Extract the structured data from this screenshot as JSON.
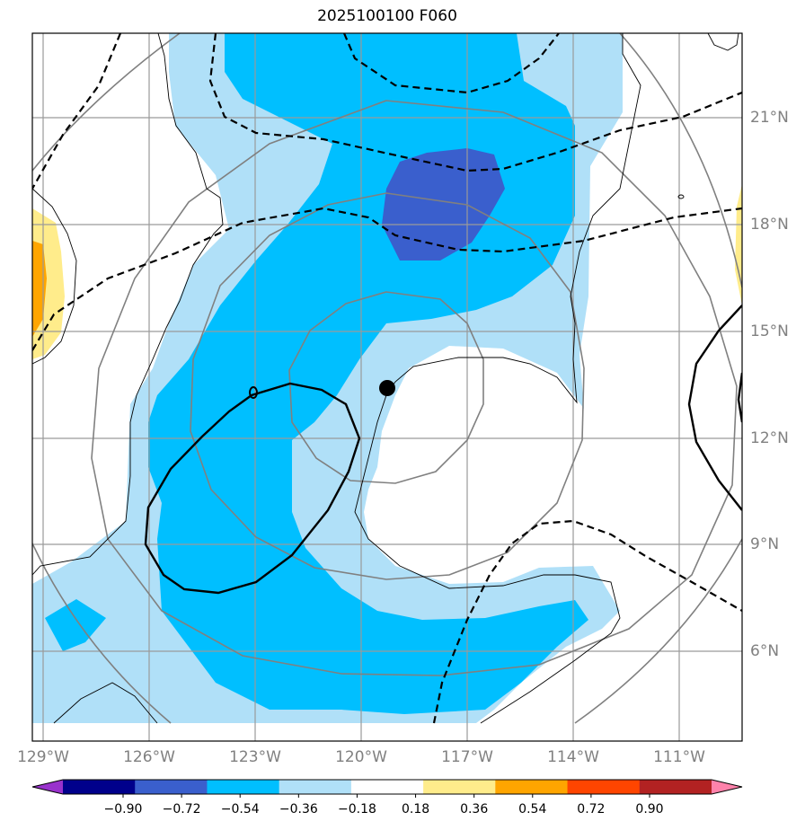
{
  "title": "2025100100 F060",
  "lon_ticks": [
    "129°W",
    "126°W",
    "123°W",
    "120°W",
    "117°W",
    "114°W",
    "111°W"
  ],
  "lat_ticks": [
    "21°N",
    "18°N",
    "15°N",
    "12°N",
    "9°N",
    "6°N"
  ],
  "storm_center": {
    "lon": "119.2°W",
    "lat": "13.4°N"
  },
  "colorbar": {
    "ticks": [
      "−0.90",
      "−0.72",
      "−0.54",
      "−0.36",
      "−0.18",
      "0.18",
      "0.36",
      "0.54",
      "0.72",
      "0.90"
    ],
    "colors": [
      "#9932cc",
      "#00008b",
      "#3a5fcd",
      "#00bfff",
      "#b0e0f8",
      "#ffffff",
      "#ffec8b",
      "#ffa500",
      "#ff4500",
      "#b22222",
      "#ff82ab"
    ],
    "extend": "both"
  }
}
